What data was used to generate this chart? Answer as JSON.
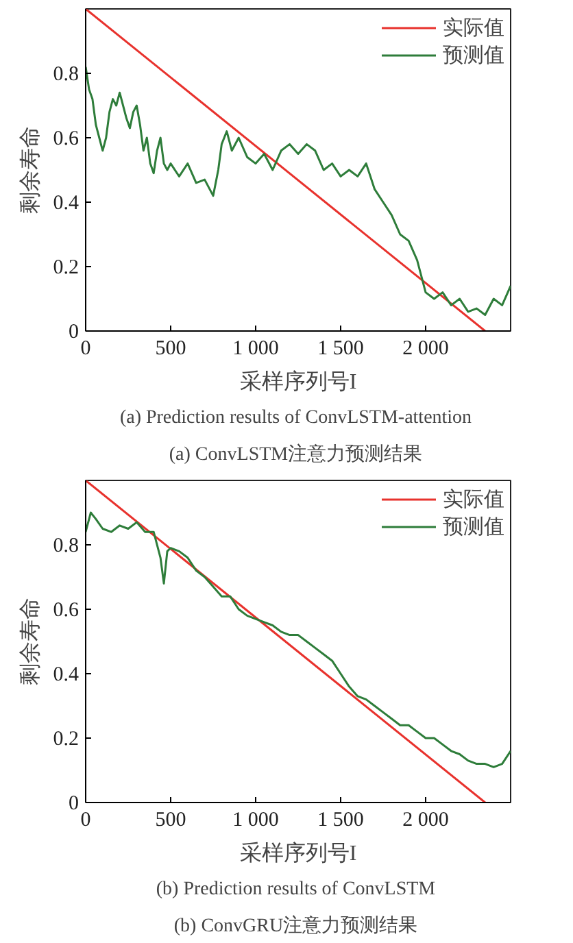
{
  "chart_data": [
    {
      "type": "line",
      "title": "(a)  ConvLSTM注意力预测结果",
      "subtitle": "(a)  Prediction results of ConvLSTM-attention",
      "xlabel": "采样序列号I",
      "ylabel": "剩余寿命",
      "xlim": [
        0,
        2500
      ],
      "ylim": [
        0,
        1.0
      ],
      "xticks": [
        0,
        500,
        {
          "value": 1000,
          "label": "1 000"
        },
        {
          "value": 1500,
          "label": "1 500"
        },
        {
          "value": 2000,
          "label": "2 000"
        }
      ],
      "yticks": [
        0,
        0.2,
        0.4,
        0.6,
        0.8
      ],
      "grid": false,
      "legend": "top right",
      "series": [
        {
          "name": "实际值",
          "color": "#e8322d",
          "x": [
            0,
            2350
          ],
          "values": [
            1.0,
            0
          ]
        },
        {
          "name": "预测值",
          "color": "#2e7d3a",
          "x": [
            0,
            20,
            40,
            60,
            80,
            100,
            120,
            140,
            160,
            180,
            200,
            220,
            240,
            260,
            280,
            300,
            320,
            340,
            360,
            380,
            400,
            420,
            440,
            460,
            480,
            500,
            550,
            600,
            650,
            700,
            750,
            780,
            800,
            830,
            860,
            900,
            950,
            1000,
            1050,
            1100,
            1150,
            1200,
            1250,
            1300,
            1350,
            1400,
            1450,
            1500,
            1550,
            1600,
            1650,
            1700,
            1750,
            1800,
            1850,
            1900,
            1950,
            2000,
            2050,
            2100,
            2150,
            2200,
            2250,
            2300,
            2350,
            2400,
            2450,
            2500
          ],
          "values": [
            0.82,
            0.75,
            0.72,
            0.64,
            0.6,
            0.56,
            0.6,
            0.68,
            0.72,
            0.7,
            0.74,
            0.7,
            0.66,
            0.63,
            0.68,
            0.7,
            0.64,
            0.56,
            0.6,
            0.52,
            0.49,
            0.56,
            0.6,
            0.52,
            0.5,
            0.52,
            0.48,
            0.52,
            0.46,
            0.47,
            0.42,
            0.5,
            0.58,
            0.62,
            0.56,
            0.6,
            0.54,
            0.52,
            0.55,
            0.5,
            0.56,
            0.58,
            0.55,
            0.58,
            0.56,
            0.5,
            0.52,
            0.48,
            0.5,
            0.48,
            0.52,
            0.44,
            0.4,
            0.36,
            0.3,
            0.28,
            0.22,
            0.12,
            0.1,
            0.12,
            0.08,
            0.1,
            0.06,
            0.07,
            0.05,
            0.1,
            0.08,
            0.14
          ]
        }
      ]
    },
    {
      "type": "line",
      "title": "(b)  ConvGRU注意力预测结果",
      "subtitle": "(b)  Prediction results of ConvLSTM",
      "xlabel": "采样序列号I",
      "ylabel": "剩余寿命",
      "xlim": [
        0,
        2500
      ],
      "ylim": [
        0,
        1.0
      ],
      "xticks": [
        0,
        500,
        {
          "value": 1000,
          "label": "1 000"
        },
        {
          "value": 1500,
          "label": "1 500"
        },
        {
          "value": 2000,
          "label": "2 000"
        }
      ],
      "yticks": [
        0,
        0.2,
        0.4,
        0.6,
        0.8
      ],
      "grid": false,
      "legend": "top right",
      "series": [
        {
          "name": "实际值",
          "color": "#e8322d",
          "x": [
            0,
            2350
          ],
          "values": [
            1.0,
            0
          ]
        },
        {
          "name": "预测值",
          "color": "#2e7d3a",
          "x": [
            0,
            30,
            60,
            100,
            150,
            200,
            250,
            300,
            350,
            400,
            440,
            460,
            480,
            500,
            550,
            600,
            650,
            700,
            750,
            800,
            850,
            900,
            950,
            1000,
            1050,
            1100,
            1150,
            1200,
            1250,
            1300,
            1350,
            1400,
            1450,
            1500,
            1550,
            1600,
            1650,
            1700,
            1750,
            1800,
            1850,
            1900,
            1950,
            2000,
            2050,
            2100,
            2150,
            2200,
            2250,
            2300,
            2350,
            2400,
            2450,
            2500
          ],
          "values": [
            0.84,
            0.9,
            0.88,
            0.85,
            0.84,
            0.86,
            0.85,
            0.87,
            0.84,
            0.84,
            0.76,
            0.68,
            0.78,
            0.79,
            0.78,
            0.76,
            0.72,
            0.7,
            0.67,
            0.64,
            0.64,
            0.6,
            0.58,
            0.57,
            0.56,
            0.55,
            0.53,
            0.52,
            0.52,
            0.5,
            0.48,
            0.46,
            0.44,
            0.4,
            0.36,
            0.33,
            0.32,
            0.3,
            0.28,
            0.26,
            0.24,
            0.24,
            0.22,
            0.2,
            0.2,
            0.18,
            0.16,
            0.15,
            0.13,
            0.12,
            0.12,
            0.11,
            0.12,
            0.16
          ]
        }
      ]
    }
  ]
}
